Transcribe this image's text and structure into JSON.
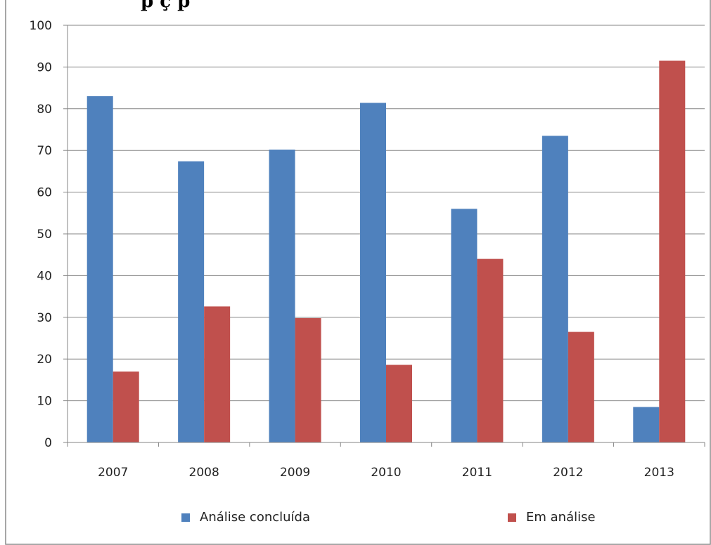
{
  "header": {
    "title_fragment": "p                  ç      p"
  },
  "chart_data": {
    "type": "bar",
    "title": "",
    "xlabel": "",
    "ylabel": "",
    "categories": [
      "2007",
      "2008",
      "2009",
      "2010",
      "2011",
      "2012",
      "2013"
    ],
    "series": [
      {
        "name": "Análise concluída",
        "color": "#4f81bd",
        "values": [
          83,
          67.4,
          70.2,
          81.4,
          56,
          73.5,
          8.5
        ]
      },
      {
        "name": "Em análise",
        "color": "#c0504d",
        "values": [
          17,
          32.6,
          29.8,
          18.6,
          44,
          26.5,
          91.5
        ]
      }
    ],
    "ylim": [
      0,
      100
    ],
    "yticks": [
      "0",
      "10",
      "20",
      "30",
      "40",
      "50",
      "60",
      "70",
      "80",
      "90",
      "100"
    ],
    "grid": true,
    "legend_position": "bottom"
  }
}
